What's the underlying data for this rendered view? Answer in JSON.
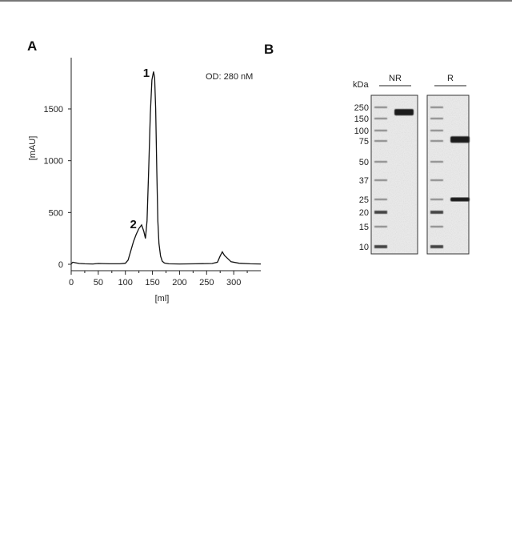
{
  "panels": {
    "a": "A",
    "b": "B"
  },
  "chart_data": [
    {
      "type": "line",
      "title": "",
      "xlabel": "[ml]",
      "ylabel": "[mAU]",
      "xlim": [
        0,
        350
      ],
      "ylim": [
        -40,
        1900
      ],
      "x_ticks": [
        0,
        50,
        100,
        150,
        200,
        250,
        300
      ],
      "y_ticks": [
        0,
        500,
        1000,
        1500
      ],
      "grid": false,
      "annotation": "OD: 280 nM",
      "peak_labels": [
        {
          "text": "1",
          "x": 152,
          "y": 1840
        },
        {
          "text": "2",
          "x": 128,
          "y": 380
        }
      ],
      "series": [
        {
          "x": [
            0,
            3,
            8,
            15,
            25,
            40,
            50,
            70,
            90,
            100,
            105,
            110,
            115,
            120,
            125,
            130,
            134,
            137,
            140,
            143,
            146,
            149,
            152,
            154,
            156,
            158,
            160,
            162,
            165,
            168,
            172,
            180,
            200,
            230,
            260,
            270,
            275,
            279,
            283,
            288,
            295,
            310,
            330,
            350
          ],
          "y": [
            5,
            20,
            15,
            8,
            5,
            3,
            8,
            5,
            5,
            10,
            40,
            130,
            220,
            290,
            345,
            380,
            320,
            250,
            420,
            900,
            1450,
            1780,
            1860,
            1800,
            1500,
            900,
            420,
            200,
            80,
            30,
            12,
            5,
            3,
            5,
            8,
            20,
            80,
            120,
            85,
            60,
            25,
            10,
            5,
            3
          ]
        }
      ]
    },
    {
      "type": "table",
      "unit_label": "kDa",
      "lanes": [
        "NR",
        "R"
      ],
      "marker_kda": [
        250,
        150,
        100,
        75,
        50,
        37,
        25,
        20,
        15,
        10
      ],
      "bands": [
        {
          "lane": "NR",
          "kda": 200
        },
        {
          "lane": "R",
          "kda": 78
        },
        {
          "lane": "R",
          "kda": 25
        }
      ]
    }
  ]
}
